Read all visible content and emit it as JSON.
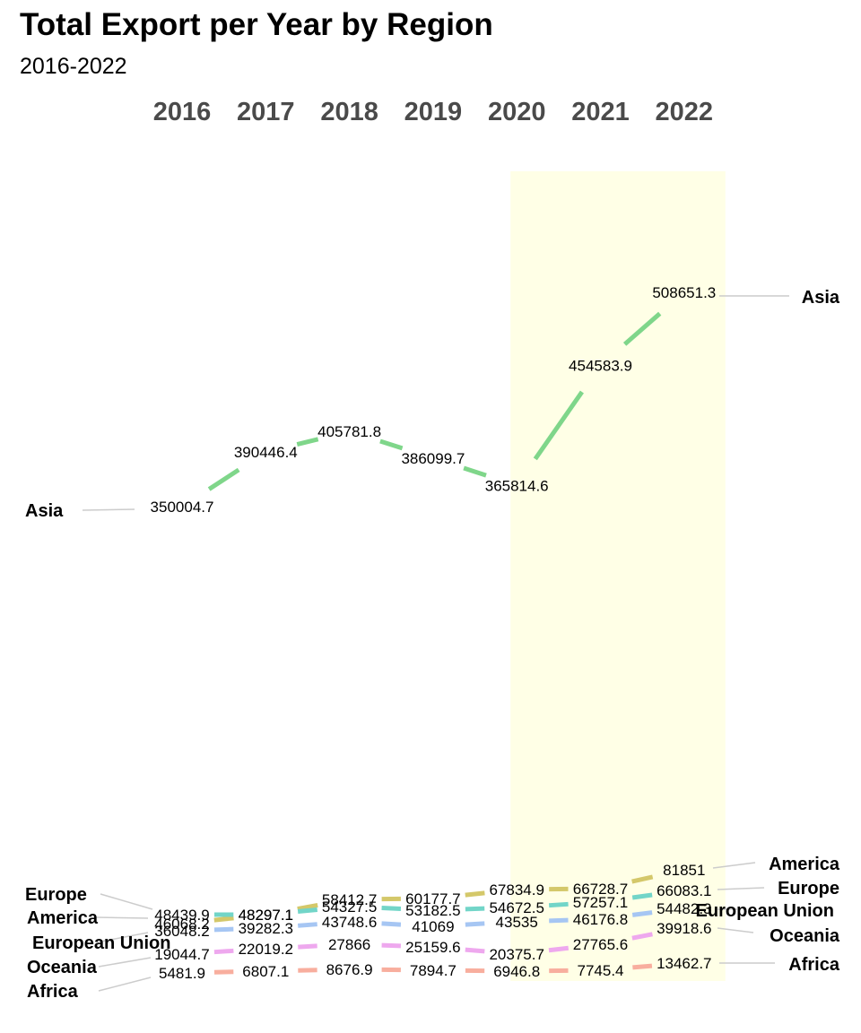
{
  "chart_data": {
    "type": "line",
    "title": "Total Export per Year by Region",
    "subtitle": "2016-2022",
    "x": [
      "2016",
      "2017",
      "2018",
      "2019",
      "2020",
      "2021",
      "2022"
    ],
    "highlight_range": [
      "2020",
      "2022"
    ],
    "highlight_color": "#ffffe6",
    "connector_color": "#cccccc",
    "series": [
      {
        "name": "Asia",
        "color": "#7fd68a",
        "values": [
          350004.7,
          390446.4,
          405781.8,
          386099.7,
          365814.6,
          454583.9,
          508651.3
        ]
      },
      {
        "name": "America",
        "color": "#d4c86a",
        "values": [
          46068.2,
          48297.1,
          58412.7,
          60177.7,
          67834.9,
          66728.7,
          81851
        ]
      },
      {
        "name": "Europe",
        "color": "#72d5c8",
        "values": [
          48439.9,
          48297.1,
          54327.5,
          53182.5,
          54672.5,
          57257.1,
          66083.1
        ]
      },
      {
        "name": "European Union",
        "color": "#a6c6f3",
        "values": [
          36048.2,
          39282.3,
          43748.6,
          41069,
          43535,
          46176.8,
          54482.3
        ]
      },
      {
        "name": "Oceania",
        "color": "#eea8ee",
        "values": [
          19044.7,
          22019.2,
          27866,
          25159.6,
          20375.7,
          27765.6,
          39918.6
        ]
      },
      {
        "name": "Africa",
        "color": "#f8ae9e",
        "values": [
          5481.9,
          6807.1,
          8676.9,
          7894.7,
          6946.8,
          7745.4,
          13462.7
        ]
      }
    ]
  }
}
